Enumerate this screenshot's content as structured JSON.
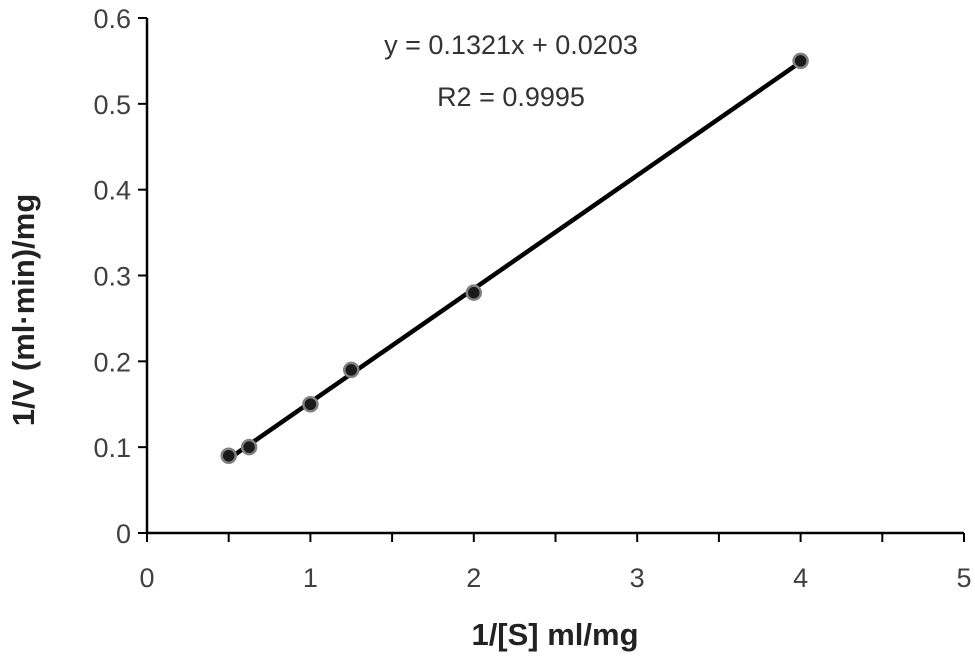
{
  "chart_data": {
    "type": "scatter",
    "title": "",
    "xlabel": "1/[S] ml/mg",
    "ylabel": "1/V (ml·min)/mg",
    "xlim": [
      0,
      5
    ],
    "ylim": [
      0,
      0.6
    ],
    "x_ticks": [
      0,
      0.5,
      1,
      1.5,
      2,
      2.5,
      3,
      3.5,
      4,
      4.5,
      5
    ],
    "x_tick_labels": [
      "0",
      "1",
      "2",
      "3",
      "4",
      "5"
    ],
    "x_tick_label_values": [
      0,
      1,
      2,
      3,
      4,
      5
    ],
    "y_ticks": [
      0,
      0.1,
      0.2,
      0.3,
      0.4,
      0.5,
      0.6
    ],
    "y_tick_labels": [
      "0",
      "0.1",
      "0.2",
      "0.3",
      "0.4",
      "0.5",
      "0.6"
    ],
    "grid": false,
    "legend": "none",
    "series": [
      {
        "x": [
          0.5,
          0.625,
          1,
          1.25,
          2,
          4
        ],
        "y": [
          0.09,
          0.1,
          0.15,
          0.19,
          0.28,
          0.55
        ],
        "marker_color": "#1a1a1a",
        "marker_edge_color": "#808080"
      }
    ],
    "trendline": {
      "slope": 0.1321,
      "intercept": 0.0203,
      "x_range": [
        0.5,
        4
      ],
      "color": "#000000"
    },
    "annotations": {
      "equation": "y = 0.1321x + 0.0203",
      "r_squared": "R2 = 0.9995"
    }
  }
}
